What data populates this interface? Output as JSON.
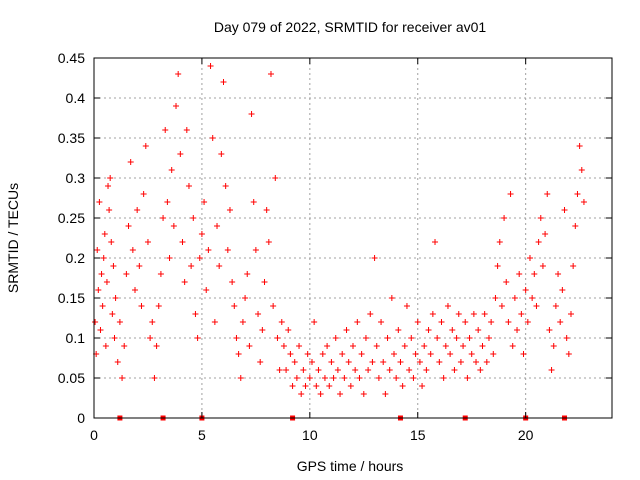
{
  "chart_data": {
    "type": "scatter",
    "title": "Day 079 of 2022, SRMTID for receiver av01",
    "xlabel": "GPS time / hours",
    "ylabel": "SRMTID / TECUs",
    "xlim": [
      0,
      24
    ],
    "ylim": [
      0,
      0.45
    ],
    "xticks": [
      0,
      5,
      10,
      15,
      20
    ],
    "yticks": [
      0,
      0.05,
      0.1,
      0.15,
      0.2,
      0.25,
      0.3,
      0.35,
      0.4,
      0.45
    ],
    "grid": true,
    "marker": "+",
    "color": "#ff0000",
    "series": [
      {
        "name": "SRMTID",
        "points": [
          [
            0.05,
            0.12
          ],
          [
            0.1,
            0.08
          ],
          [
            0.15,
            0.21
          ],
          [
            0.2,
            0.16
          ],
          [
            0.25,
            0.27
          ],
          [
            0.3,
            0.11
          ],
          [
            0.35,
            0.18
          ],
          [
            0.4,
            0.14
          ],
          [
            0.45,
            0.2
          ],
          [
            0.5,
            0.23
          ],
          [
            0.55,
            0.09
          ],
          [
            0.6,
            0.17
          ],
          [
            0.65,
            0.29
          ],
          [
            0.7,
            0.26
          ],
          [
            0.75,
            0.3
          ],
          [
            0.8,
            0.22
          ],
          [
            0.85,
            0.13
          ],
          [
            0.9,
            0.19
          ],
          [
            0.95,
            0.1
          ],
          [
            1.0,
            0.15
          ],
          [
            1.1,
            0.07
          ],
          [
            1.2,
            0.12
          ],
          [
            1.3,
            0.05
          ],
          [
            1.4,
            0.09
          ],
          [
            1.5,
            0.18
          ],
          [
            1.6,
            0.24
          ],
          [
            1.7,
            0.32
          ],
          [
            1.8,
            0.21
          ],
          [
            1.9,
            0.16
          ],
          [
            2.0,
            0.26
          ],
          [
            2.1,
            0.19
          ],
          [
            2.2,
            0.14
          ],
          [
            2.3,
            0.28
          ],
          [
            2.4,
            0.34
          ],
          [
            2.5,
            0.22
          ],
          [
            2.6,
            0.1
          ],
          [
            2.7,
            0.12
          ],
          [
            2.8,
            0.05
          ],
          [
            2.9,
            0.09
          ],
          [
            3.0,
            0.14
          ],
          [
            3.1,
            0.18
          ],
          [
            3.2,
            0.25
          ],
          [
            3.3,
            0.36
          ],
          [
            3.4,
            0.27
          ],
          [
            3.5,
            0.2
          ],
          [
            3.6,
            0.31
          ],
          [
            3.7,
            0.24
          ],
          [
            3.8,
            0.39
          ],
          [
            3.9,
            0.43
          ],
          [
            4.0,
            0.33
          ],
          [
            4.1,
            0.22
          ],
          [
            4.2,
            0.17
          ],
          [
            4.3,
            0.36
          ],
          [
            4.4,
            0.29
          ],
          [
            4.5,
            0.19
          ],
          [
            4.6,
            0.25
          ],
          [
            4.7,
            0.13
          ],
          [
            4.8,
            0.1
          ],
          [
            4.9,
            0.2
          ],
          [
            5.0,
            0.23
          ],
          [
            5.1,
            0.27
          ],
          [
            5.2,
            0.16
          ],
          [
            5.3,
            0.21
          ],
          [
            5.4,
            0.44
          ],
          [
            5.5,
            0.35
          ],
          [
            5.6,
            0.12
          ],
          [
            5.7,
            0.24
          ],
          [
            5.8,
            0.19
          ],
          [
            5.9,
            0.33
          ],
          [
            6.0,
            0.42
          ],
          [
            6.1,
            0.29
          ],
          [
            6.2,
            0.21
          ],
          [
            6.3,
            0.26
          ],
          [
            6.4,
            0.17
          ],
          [
            6.5,
            0.14
          ],
          [
            6.6,
            0.1
          ],
          [
            6.7,
            0.08
          ],
          [
            6.8,
            0.05
          ],
          [
            6.9,
            0.12
          ],
          [
            7.0,
            0.15
          ],
          [
            7.1,
            0.18
          ],
          [
            7.2,
            0.09
          ],
          [
            7.3,
            0.38
          ],
          [
            7.4,
            0.27
          ],
          [
            7.5,
            0.21
          ],
          [
            7.6,
            0.13
          ],
          [
            7.7,
            0.07
          ],
          [
            7.8,
            0.11
          ],
          [
            7.9,
            0.17
          ],
          [
            8.0,
            0.26
          ],
          [
            8.1,
            0.22
          ],
          [
            8.2,
            0.43
          ],
          [
            8.3,
            0.14
          ],
          [
            8.4,
            0.3
          ],
          [
            8.5,
            0.1
          ],
          [
            8.6,
            0.06
          ],
          [
            8.7,
            0.12
          ],
          [
            8.8,
            0.09
          ],
          [
            8.9,
            0.06
          ],
          [
            9.0,
            0.11
          ],
          [
            9.1,
            0.08
          ],
          [
            9.2,
            0.04
          ],
          [
            9.3,
            0.07
          ],
          [
            9.4,
            0.05
          ],
          [
            9.5,
            0.09
          ],
          [
            9.6,
            0.03
          ],
          [
            9.7,
            0.06
          ],
          [
            9.8,
            0.04
          ],
          [
            9.9,
            0.08
          ],
          [
            10.0,
            0.05
          ],
          [
            10.1,
            0.07
          ],
          [
            10.2,
            0.12
          ],
          [
            10.3,
            0.04
          ],
          [
            10.4,
            0.06
          ],
          [
            10.5,
            0.03
          ],
          [
            10.6,
            0.08
          ],
          [
            10.7,
            0.05
          ],
          [
            10.8,
            0.09
          ],
          [
            10.9,
            0.04
          ],
          [
            11.0,
            0.07
          ],
          [
            11.1,
            0.05
          ],
          [
            11.2,
            0.1
          ],
          [
            11.3,
            0.06
          ],
          [
            11.4,
            0.03
          ],
          [
            11.5,
            0.08
          ],
          [
            11.6,
            0.05
          ],
          [
            11.7,
            0.11
          ],
          [
            11.8,
            0.07
          ],
          [
            11.9,
            0.04
          ],
          [
            12.0,
            0.09
          ],
          [
            12.1,
            0.06
          ],
          [
            12.2,
            0.12
          ],
          [
            12.3,
            0.05
          ],
          [
            12.4,
            0.08
          ],
          [
            12.5,
            0.03
          ],
          [
            12.6,
            0.1
          ],
          [
            12.7,
            0.06
          ],
          [
            12.8,
            0.13
          ],
          [
            12.9,
            0.07
          ],
          [
            13.0,
            0.2
          ],
          [
            13.1,
            0.09
          ],
          [
            13.2,
            0.05
          ],
          [
            13.3,
            0.12
          ],
          [
            13.4,
            0.07
          ],
          [
            13.5,
            0.03
          ],
          [
            13.6,
            0.1
          ],
          [
            13.7,
            0.06
          ],
          [
            13.8,
            0.15
          ],
          [
            13.9,
            0.08
          ],
          [
            14.0,
            0.05
          ],
          [
            14.1,
            0.11
          ],
          [
            14.2,
            0.07
          ],
          [
            14.3,
            0.04
          ],
          [
            14.4,
            0.09
          ],
          [
            14.5,
            0.14
          ],
          [
            14.6,
            0.06
          ],
          [
            14.7,
            0.1
          ],
          [
            14.8,
            0.05
          ],
          [
            14.9,
            0.08
          ],
          [
            15.0,
            0.12
          ],
          [
            15.1,
            0.07
          ],
          [
            15.2,
            0.04
          ],
          [
            15.3,
            0.09
          ],
          [
            15.4,
            0.06
          ],
          [
            15.5,
            0.11
          ],
          [
            15.6,
            0.08
          ],
          [
            15.7,
            0.13
          ],
          [
            15.8,
            0.22
          ],
          [
            15.9,
            0.1
          ],
          [
            16.0,
            0.07
          ],
          [
            16.1,
            0.12
          ],
          [
            16.2,
            0.05
          ],
          [
            16.3,
            0.09
          ],
          [
            16.4,
            0.14
          ],
          [
            16.5,
            0.08
          ],
          [
            16.6,
            0.11
          ],
          [
            16.7,
            0.06
          ],
          [
            16.8,
            0.1
          ],
          [
            16.9,
            0.13
          ],
          [
            17.0,
            0.07
          ],
          [
            17.1,
            0.09
          ],
          [
            17.2,
            0.12
          ],
          [
            17.3,
            0.05
          ],
          [
            17.4,
            0.1
          ],
          [
            17.5,
            0.08
          ],
          [
            17.6,
            0.13
          ],
          [
            17.7,
            0.07
          ],
          [
            17.8,
            0.11
          ],
          [
            17.9,
            0.06
          ],
          [
            18.0,
            0.09
          ],
          [
            18.1,
            0.13
          ],
          [
            18.2,
            0.07
          ],
          [
            18.3,
            0.1
          ],
          [
            18.4,
            0.12
          ],
          [
            18.5,
            0.08
          ],
          [
            18.6,
            0.15
          ],
          [
            18.7,
            0.19
          ],
          [
            18.8,
            0.22
          ],
          [
            18.9,
            0.14
          ],
          [
            19.0,
            0.25
          ],
          [
            19.1,
            0.17
          ],
          [
            19.2,
            0.12
          ],
          [
            19.3,
            0.28
          ],
          [
            19.4,
            0.09
          ],
          [
            19.5,
            0.15
          ],
          [
            19.6,
            0.11
          ],
          [
            19.7,
            0.18
          ],
          [
            19.8,
            0.13
          ],
          [
            19.9,
            0.08
          ],
          [
            20.0,
            0.16
          ],
          [
            20.1,
            0.12
          ],
          [
            20.2,
            0.2
          ],
          [
            20.3,
            0.15
          ],
          [
            20.4,
            0.18
          ],
          [
            20.5,
            0.14
          ],
          [
            20.6,
            0.22
          ],
          [
            20.7,
            0.25
          ],
          [
            20.8,
            0.19
          ],
          [
            20.9,
            0.23
          ],
          [
            21.0,
            0.28
          ],
          [
            21.1,
            0.11
          ],
          [
            21.2,
            0.06
          ],
          [
            21.3,
            0.09
          ],
          [
            21.4,
            0.14
          ],
          [
            21.5,
            0.18
          ],
          [
            21.6,
            0.12
          ],
          [
            21.7,
            0.16
          ],
          [
            21.8,
            0.26
          ],
          [
            21.9,
            0.1
          ],
          [
            22.0,
            0.08
          ],
          [
            22.1,
            0.13
          ],
          [
            22.2,
            0.19
          ],
          [
            22.3,
            0.24
          ],
          [
            22.4,
            0.28
          ],
          [
            22.5,
            0.34
          ],
          [
            22.6,
            0.31
          ],
          [
            22.7,
            0.27
          ]
        ]
      }
    ],
    "axis_markers_x": [
      1.2,
      3.2,
      5.0,
      9.2,
      14.2,
      17.2,
      20.0,
      21.8
    ]
  }
}
